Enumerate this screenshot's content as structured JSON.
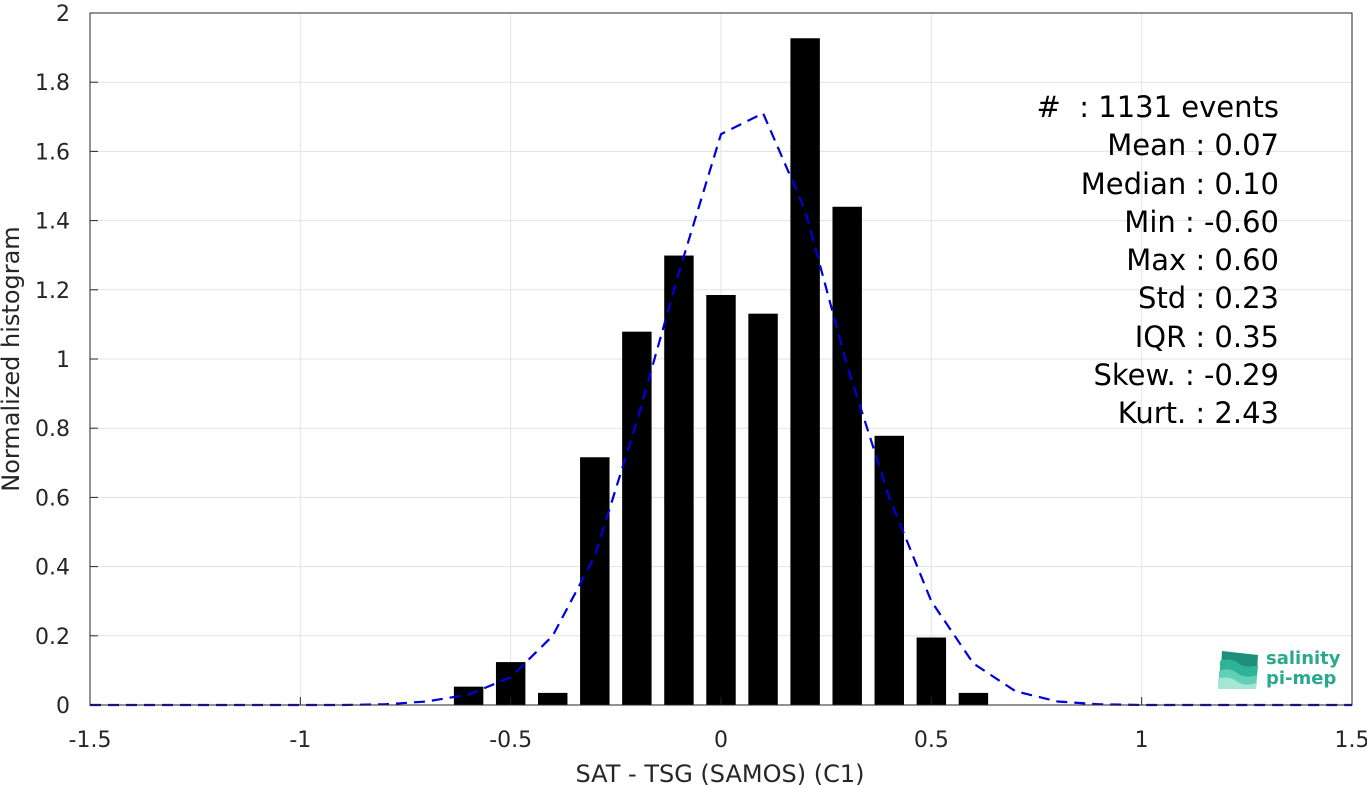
{
  "chart_data": {
    "type": "bar",
    "xlabel": "SAT - TSG (SAMOS) (C1)",
    "ylabel": "Normalized histogram",
    "xlim": [
      -1.5,
      1.5
    ],
    "ylim": [
      0,
      2
    ],
    "xticks": [
      "-1.5",
      "-1",
      "-0.5",
      "0",
      "0.5",
      "1",
      "1.5"
    ],
    "xtick_values": [
      -1.5,
      -1,
      -0.5,
      0,
      0.5,
      1,
      1.5
    ],
    "yticks": [
      "0",
      "0.2",
      "0.4",
      "0.6",
      "0.8",
      "1",
      "1.2",
      "1.4",
      "1.6",
      "1.8",
      "2"
    ],
    "ytick_values": [
      0,
      0.2,
      0.4,
      0.6,
      0.8,
      1,
      1.2,
      1.4,
      1.6,
      1.8,
      2
    ],
    "grid": true,
    "bars": {
      "x": [
        -0.6,
        -0.5,
        -0.4,
        -0.3,
        -0.2,
        -0.1,
        0.0,
        0.1,
        0.2,
        0.3,
        0.4,
        0.5,
        0.6
      ],
      "values": [
        0.053,
        0.124,
        0.035,
        0.716,
        1.079,
        1.299,
        1.185,
        1.131,
        1.927,
        1.44,
        0.778,
        0.195,
        0.035
      ],
      "color": "#000000",
      "width": 0.07
    },
    "fit_line": {
      "style": "dashed",
      "color": "#0000dd",
      "x": [
        -1.5,
        -1.4,
        -1.3,
        -1.2,
        -1.1,
        -1.0,
        -0.9,
        -0.8,
        -0.7,
        -0.6,
        -0.5,
        -0.4,
        -0.3,
        -0.2,
        -0.1,
        0.0,
        0.1,
        0.2,
        0.3,
        0.4,
        0.5,
        0.6,
        0.7,
        0.8,
        0.9,
        1.0,
        1.1,
        1.2,
        1.3,
        1.4,
        1.5
      ],
      "y": [
        0,
        0,
        0,
        0,
        0,
        0,
        0,
        0.002,
        0.01,
        0.03,
        0.08,
        0.2,
        0.43,
        0.82,
        1.25,
        1.65,
        1.71,
        1.43,
        0.98,
        0.6,
        0.3,
        0.12,
        0.04,
        0.01,
        0.002,
        0,
        0,
        0,
        0,
        0,
        0
      ]
    }
  },
  "stats": [
    "#  : 1131 events",
    "Mean : 0.07",
    "Median : 0.10",
    "Min : -0.60",
    "Max : 0.60",
    "Std : 0.23",
    "IQR : 0.35",
    "Skew. : -0.29",
    "Kurt. : 2.43"
  ],
  "logo": {
    "line1": "salinity",
    "line2": "pi-mep",
    "color": "#2aa88e"
  }
}
